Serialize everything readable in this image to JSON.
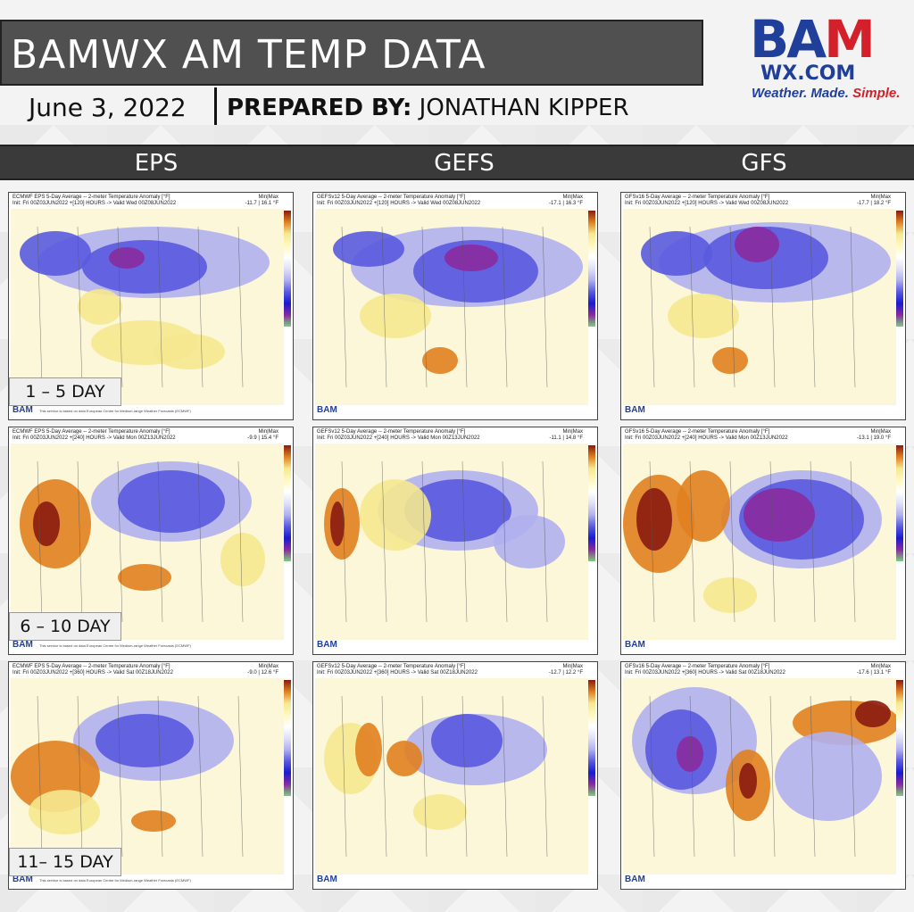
{
  "title": "BAMWX AM TEMP DATA",
  "date": "June 3, 2022",
  "prepared_label": "PREPARED BY:",
  "prepared_name": "JONATHAN KIPPER",
  "logo": {
    "b": "B",
    "a": "A",
    "m": "M",
    "wx": "WX.COM",
    "tag_main": "Weather. Made. ",
    "tag_simple": "Simple."
  },
  "columns": [
    "EPS",
    "GEFS",
    "GFS"
  ],
  "row_labels": [
    "1 – 5 DAY",
    "6 – 10 DAY",
    "11– 15 DAY"
  ],
  "panels": [
    {
      "title": "ECMWF EPS 5-Day Average -- 2-meter Temperature Anomaly [°F]",
      "init": "Init: Fri 00Z03JUN2022 +[120] HOURS -> Valid Wed 00Z08JUN2022",
      "minmax": "-11.7 | 16.1 °F",
      "note": "This service is based on data European Centre for Medium-range Weather Forecasts (ECMWF)"
    },
    {
      "title": "GEFSv12 5-Day Average -- 2-meter Temperature Anomaly [°F]",
      "init": "Init: Fri 00Z03JUN2022 +[120] HOURS -> Valid Wed 00Z08JUN2022",
      "minmax": "-17.1 | 16.3 °F",
      "note": ""
    },
    {
      "title": "GFSv16 5-Day Average -- 2-meter Temperature Anomaly [°F]",
      "init": "Init: Fri 00Z03JUN2022 +[120] HOURS -> Valid Wed 00Z08JUN2022",
      "minmax": "-17.7 | 18.2 °F",
      "note": ""
    },
    {
      "title": "ECMWF EPS 5-Day Average -- 2-meter Temperature Anomaly [°F]",
      "init": "Init: Fri 00Z03JUN2022 +[240] HOURS -> Valid Mon 00Z13JUN2022",
      "minmax": "-9.9 | 15.4 °F",
      "note": "This service is based on data European Centre for Medium-range Weather Forecasts (ECMWF)"
    },
    {
      "title": "GEFSv12 5-Day Average -- 2-meter Temperature Anomaly [°F]",
      "init": "Init: Fri 00Z03JUN2022 +[240] HOURS -> Valid Mon 00Z13JUN2022",
      "minmax": "-11.1 | 14.8 °F",
      "note": ""
    },
    {
      "title": "GFSv16 5-Day Average -- 2-meter Temperature Anomaly [°F]",
      "init": "Init: Fri 00Z03JUN2022 +[240] HOURS -> Valid Mon 00Z13JUN2022",
      "minmax": "-13.1 | 19.0 °F",
      "note": ""
    },
    {
      "title": "ECMWF EPS 5-Day Average -- 2-meter Temperature Anomaly [°F]",
      "init": "Init: Fri 00Z03JUN2022 +[360] HOURS -> Valid Sat 00Z18JUN2022",
      "minmax": "-9.0 | 12.6 °F",
      "note": "This service is based on data European Centre for Medium-range Weather Forecasts (ECMWF)"
    },
    {
      "title": "GEFSv12 5-Day Average -- 2-meter Temperature Anomaly [°F]",
      "init": "Init: Fri 00Z03JUN2022 +[360] HOURS -> Valid Sat 00Z18JUN2022",
      "minmax": "-12.7 | 12.2 °F",
      "note": ""
    },
    {
      "title": "GFSv16 5-Day Average -- 2-meter Temperature Anomaly [°F]",
      "init": "Init: Fri 00Z03JUN2022 +[360] HOURS -> Valid Sat 00Z18JUN2022",
      "minmax": "-17.6 | 13.1 °F",
      "note": ""
    }
  ],
  "minmax_label": "Min|Max",
  "mini_logo": {
    "bam": "BAM",
    "wx": "WX.COM"
  },
  "colors": {
    "cold_strong": "#1a1ad0",
    "cold": "#5a5ae0",
    "cool": "#b0b0f0",
    "neutral": "#ffffff",
    "warm": "#f5e890",
    "hot": "#e08020",
    "very_hot": "#8a1a10",
    "purple": "#8a2aa0"
  }
}
